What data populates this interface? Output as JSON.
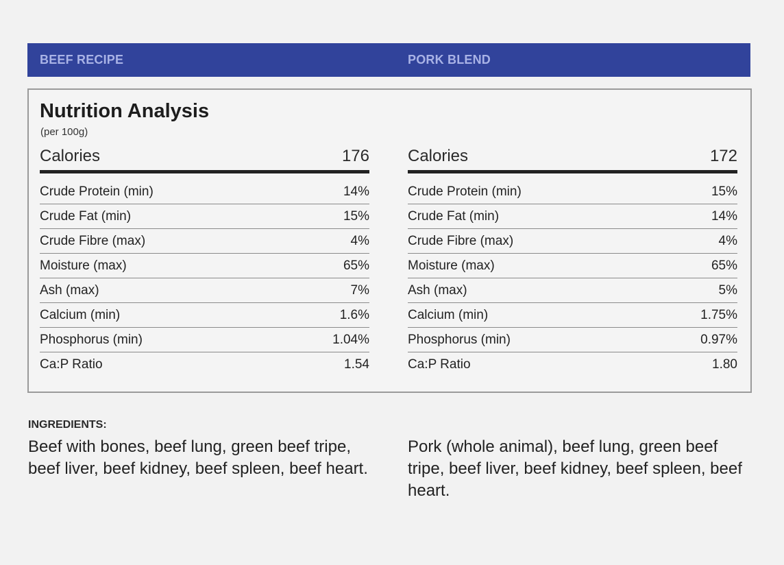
{
  "tabs": {
    "beef": "BEEF RECIPE",
    "pork": "PORK BLEND"
  },
  "nutrition": {
    "title": "Nutrition Analysis",
    "subtitle": "(per 100g)",
    "beef": {
      "calories_label": "Calories",
      "calories_value": "176",
      "rows": [
        {
          "label": "Crude Protein (min)",
          "value": "14%"
        },
        {
          "label": "Crude Fat (min)",
          "value": "15%"
        },
        {
          "label": "Crude Fibre (max)",
          "value": "4%"
        },
        {
          "label": "Moisture (max)",
          "value": "65%"
        },
        {
          "label": "Ash (max)",
          "value": "7%"
        },
        {
          "label": "Calcium (min)",
          "value": "1.6%"
        },
        {
          "label": "Phosphorus (min)",
          "value": "1.04%"
        },
        {
          "label": "Ca:P Ratio",
          "value": "1.54"
        }
      ]
    },
    "pork": {
      "calories_label": "Calories",
      "calories_value": "172",
      "rows": [
        {
          "label": "Crude Protein (min)",
          "value": "15%"
        },
        {
          "label": "Crude Fat (min)",
          "value": "14%"
        },
        {
          "label": "Crude Fibre (max)",
          "value": "4%"
        },
        {
          "label": "Moisture (max)",
          "value": "65%"
        },
        {
          "label": "Ash (max)",
          "value": "5%"
        },
        {
          "label": "Calcium (min)",
          "value": "1.75%"
        },
        {
          "label": "Phosphorus (min)",
          "value": "0.97%"
        },
        {
          "label": "Ca:P Ratio",
          "value": "1.80"
        }
      ]
    }
  },
  "ingredients": {
    "heading": "INGREDIENTS:",
    "beef": "Beef with bones, beef lung, green beef tripe, beef liver, beef kidney, beef spleen, beef heart.",
    "pork": "Pork (whole animal), beef lung, green beef tripe, beef liver, beef kidney, beef spleen, beef heart."
  },
  "colors": {
    "header_bg": "#31439b",
    "header_text": "#a9b3e6"
  }
}
